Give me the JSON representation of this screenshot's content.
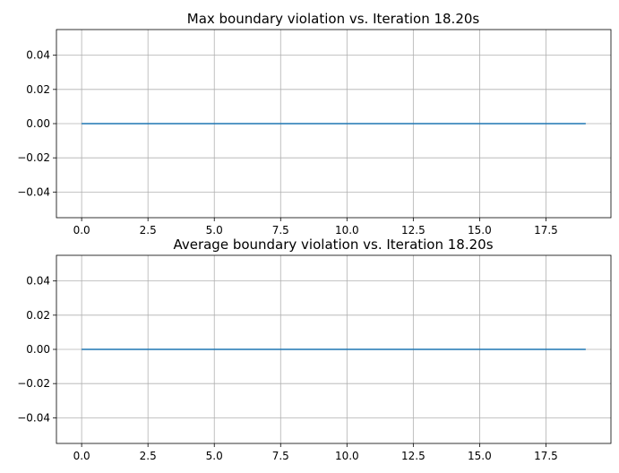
{
  "colors": {
    "line": "#1f77b4",
    "grid": "#b0b0b0",
    "axes": "#000000",
    "background": "#ffffff"
  },
  "chart_data": [
    {
      "type": "line",
      "title": "Max boundary violation vs. Iteration 18.20s",
      "xlabel": "",
      "ylabel": "",
      "grid": true,
      "xlim": [
        -0.95,
        19.95
      ],
      "ylim": [
        -0.055,
        0.055
      ],
      "xticks": [
        0.0,
        2.5,
        5.0,
        7.5,
        10.0,
        12.5,
        15.0,
        17.5
      ],
      "xtick_labels": [
        "0.0",
        "2.5",
        "5.0",
        "7.5",
        "10.0",
        "12.5",
        "15.0",
        "17.5"
      ],
      "yticks": [
        0.04,
        0.02,
        0.0,
        -0.02,
        -0.04
      ],
      "ytick_labels": [
        "0.04",
        "0.02",
        "0.00",
        "−0.02",
        "−0.04"
      ],
      "series": [
        {
          "x": [
            0,
            1,
            2,
            3,
            4,
            5,
            6,
            7,
            8,
            9,
            10,
            11,
            12,
            13,
            14,
            15,
            16,
            17,
            18,
            19
          ],
          "y": [
            0,
            0,
            0,
            0,
            0,
            0,
            0,
            0,
            0,
            0,
            0,
            0,
            0,
            0,
            0,
            0,
            0,
            0,
            0,
            0
          ]
        }
      ]
    },
    {
      "type": "line",
      "title": "Average boundary violation vs. Iteration 18.20s",
      "xlabel": "",
      "ylabel": "",
      "grid": true,
      "xlim": [
        -0.95,
        19.95
      ],
      "ylim": [
        -0.055,
        0.055
      ],
      "xticks": [
        0.0,
        2.5,
        5.0,
        7.5,
        10.0,
        12.5,
        15.0,
        17.5
      ],
      "xtick_labels": [
        "0.0",
        "2.5",
        "5.0",
        "7.5",
        "10.0",
        "12.5",
        "15.0",
        "17.5"
      ],
      "yticks": [
        0.04,
        0.02,
        0.0,
        -0.02,
        -0.04
      ],
      "ytick_labels": [
        "0.04",
        "0.02",
        "0.00",
        "−0.02",
        "−0.04"
      ],
      "series": [
        {
          "x": [
            0,
            1,
            2,
            3,
            4,
            5,
            6,
            7,
            8,
            9,
            10,
            11,
            12,
            13,
            14,
            15,
            16,
            17,
            18,
            19
          ],
          "y": [
            0,
            0,
            0,
            0,
            0,
            0,
            0,
            0,
            0,
            0,
            0,
            0,
            0,
            0,
            0,
            0,
            0,
            0,
            0,
            0
          ]
        }
      ]
    }
  ]
}
